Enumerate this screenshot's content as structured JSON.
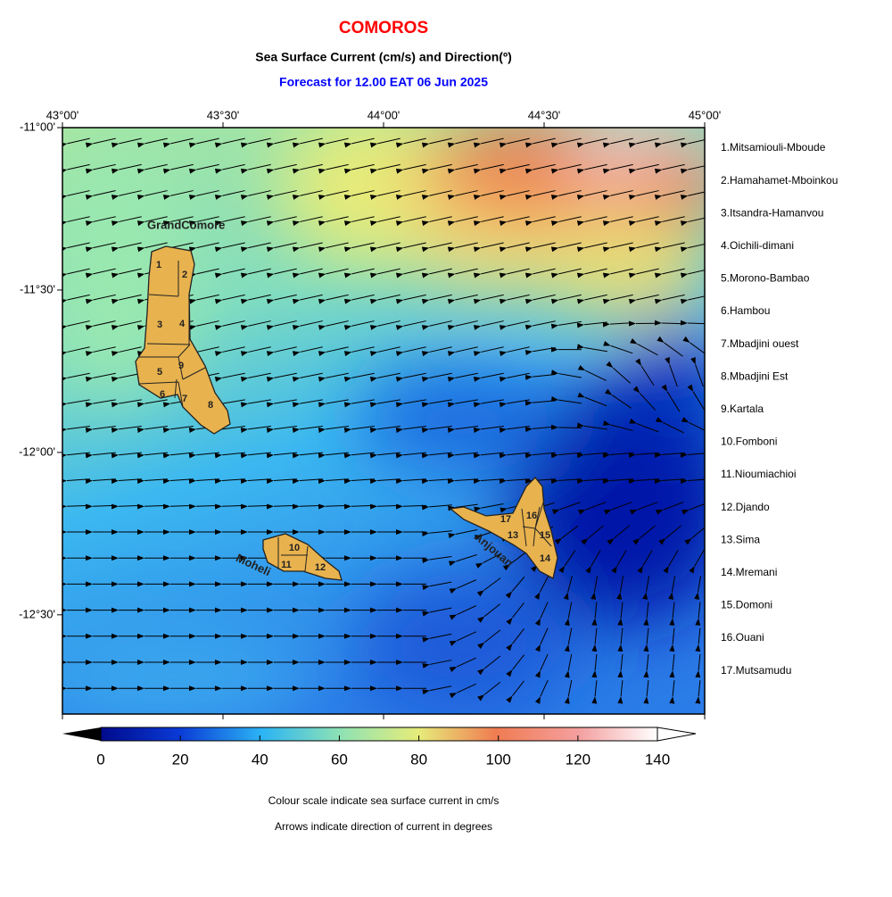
{
  "title": "COMOROS",
  "subtitle": "Sea Surface Current (cm/s) and Direction(º)",
  "forecast": "Forecast for  12.00 EAT 06 Jun 2025",
  "map": {
    "lonlim": [
      43,
      45
    ],
    "latlim": [
      -11,
      -12.8
    ],
    "lon_ticks": [
      {
        "value": 43,
        "label": "43°00'"
      },
      {
        "value": 43.5,
        "label": "43°30'"
      },
      {
        "value": 44,
        "label": "44°00'"
      },
      {
        "value": 44.5,
        "label": "44°30'"
      },
      {
        "value": 45,
        "label": "45°00'"
      }
    ],
    "lat_ticks": [
      {
        "value": -11,
        "label": "-11°00'"
      },
      {
        "value": -11.5,
        "label": "-11°30'"
      },
      {
        "value": -12,
        "label": "-12°00'"
      },
      {
        "value": -12.5,
        "label": "-12°30'"
      }
    ]
  },
  "islands": [
    {
      "name": "GrandComore",
      "regions": [
        "1",
        "2",
        "3",
        "4",
        "5",
        "6",
        "7",
        "8",
        "9"
      ]
    },
    {
      "name": "Moheli",
      "regions": [
        "10",
        "11",
        "12"
      ]
    },
    {
      "name": "Anjouan",
      "regions": [
        "17",
        "16",
        "13",
        "15",
        "14"
      ]
    }
  ],
  "legend": [
    "1.Mitsamiouli-Mboude",
    "2.Hamahamet-Mboinkou",
    "3.Itsandra-Hamanvou",
    "4.Oichili-dimani",
    "5.Morono-Bambao",
    "6.Hambou",
    "7.Mbadjini ouest",
    "8.Mbadjini Est",
    "9.Kartala",
    "10.Fomboni",
    "11.Nioumiachioi",
    "12.Djando",
    "13.Sima",
    "14.Mremani",
    "15.Domoni",
    "16.Ouani",
    "17.Mutsamudu"
  ],
  "colorbar": {
    "lim": [
      0,
      140
    ],
    "ticks": [
      0,
      20,
      40,
      60,
      80,
      100,
      120,
      140
    ]
  },
  "notes": [
    "Colour scale indicate sea surface current in cm/s",
    "Arrows indicate direction of current in degrees"
  ]
}
